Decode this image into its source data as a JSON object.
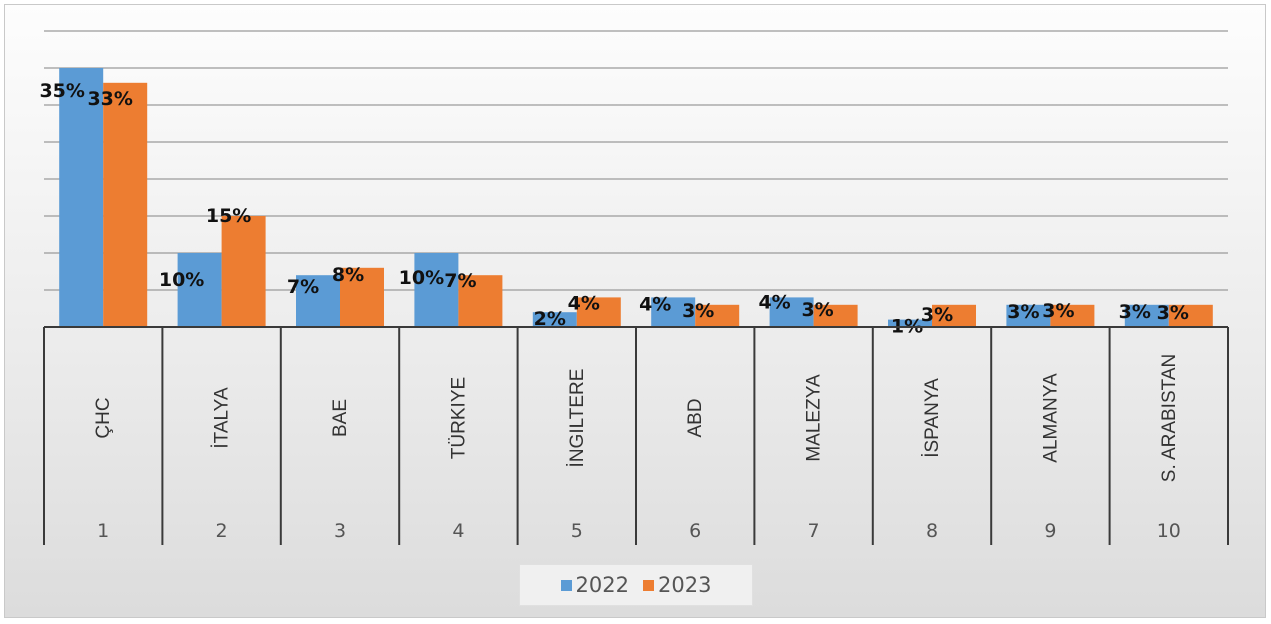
{
  "chart_data": {
    "type": "bar",
    "title": "",
    "xlabel": "",
    "ylabel": "",
    "ylim": [
      0,
      0.35
    ],
    "grid": true,
    "legend_position": "bottom",
    "categories": [
      "ÇHC",
      "İTALYA",
      "BAE",
      "TÜRKIYE",
      "İNGILTERE",
      "ABD",
      "MALEZYA",
      "İSPANYA",
      "ALMANYA",
      "S. ARABISTAN"
    ],
    "ranks": [
      "1",
      "2",
      "3",
      "4",
      "5",
      "6",
      "7",
      "8",
      "9",
      "10"
    ],
    "series": [
      {
        "name": "2022",
        "color": "#5b9bd5",
        "values": [
          0.35,
          0.1,
          0.07,
          0.1,
          0.02,
          0.04,
          0.04,
          0.01,
          0.03,
          0.03
        ],
        "labels": [
          "35%",
          "10%",
          "7%",
          "10%",
          "2%",
          "4%",
          "4%",
          "1%",
          "3%",
          "3%"
        ]
      },
      {
        "name": "2023",
        "color": "#ed7d31",
        "values": [
          0.33,
          0.15,
          0.08,
          0.07,
          0.04,
          0.03,
          0.03,
          0.03,
          0.03,
          0.03
        ],
        "labels": [
          "33%",
          "15%",
          "8%",
          "7%",
          "4%",
          "3%",
          "3%",
          "3%",
          "3%",
          "3%"
        ]
      }
    ]
  }
}
